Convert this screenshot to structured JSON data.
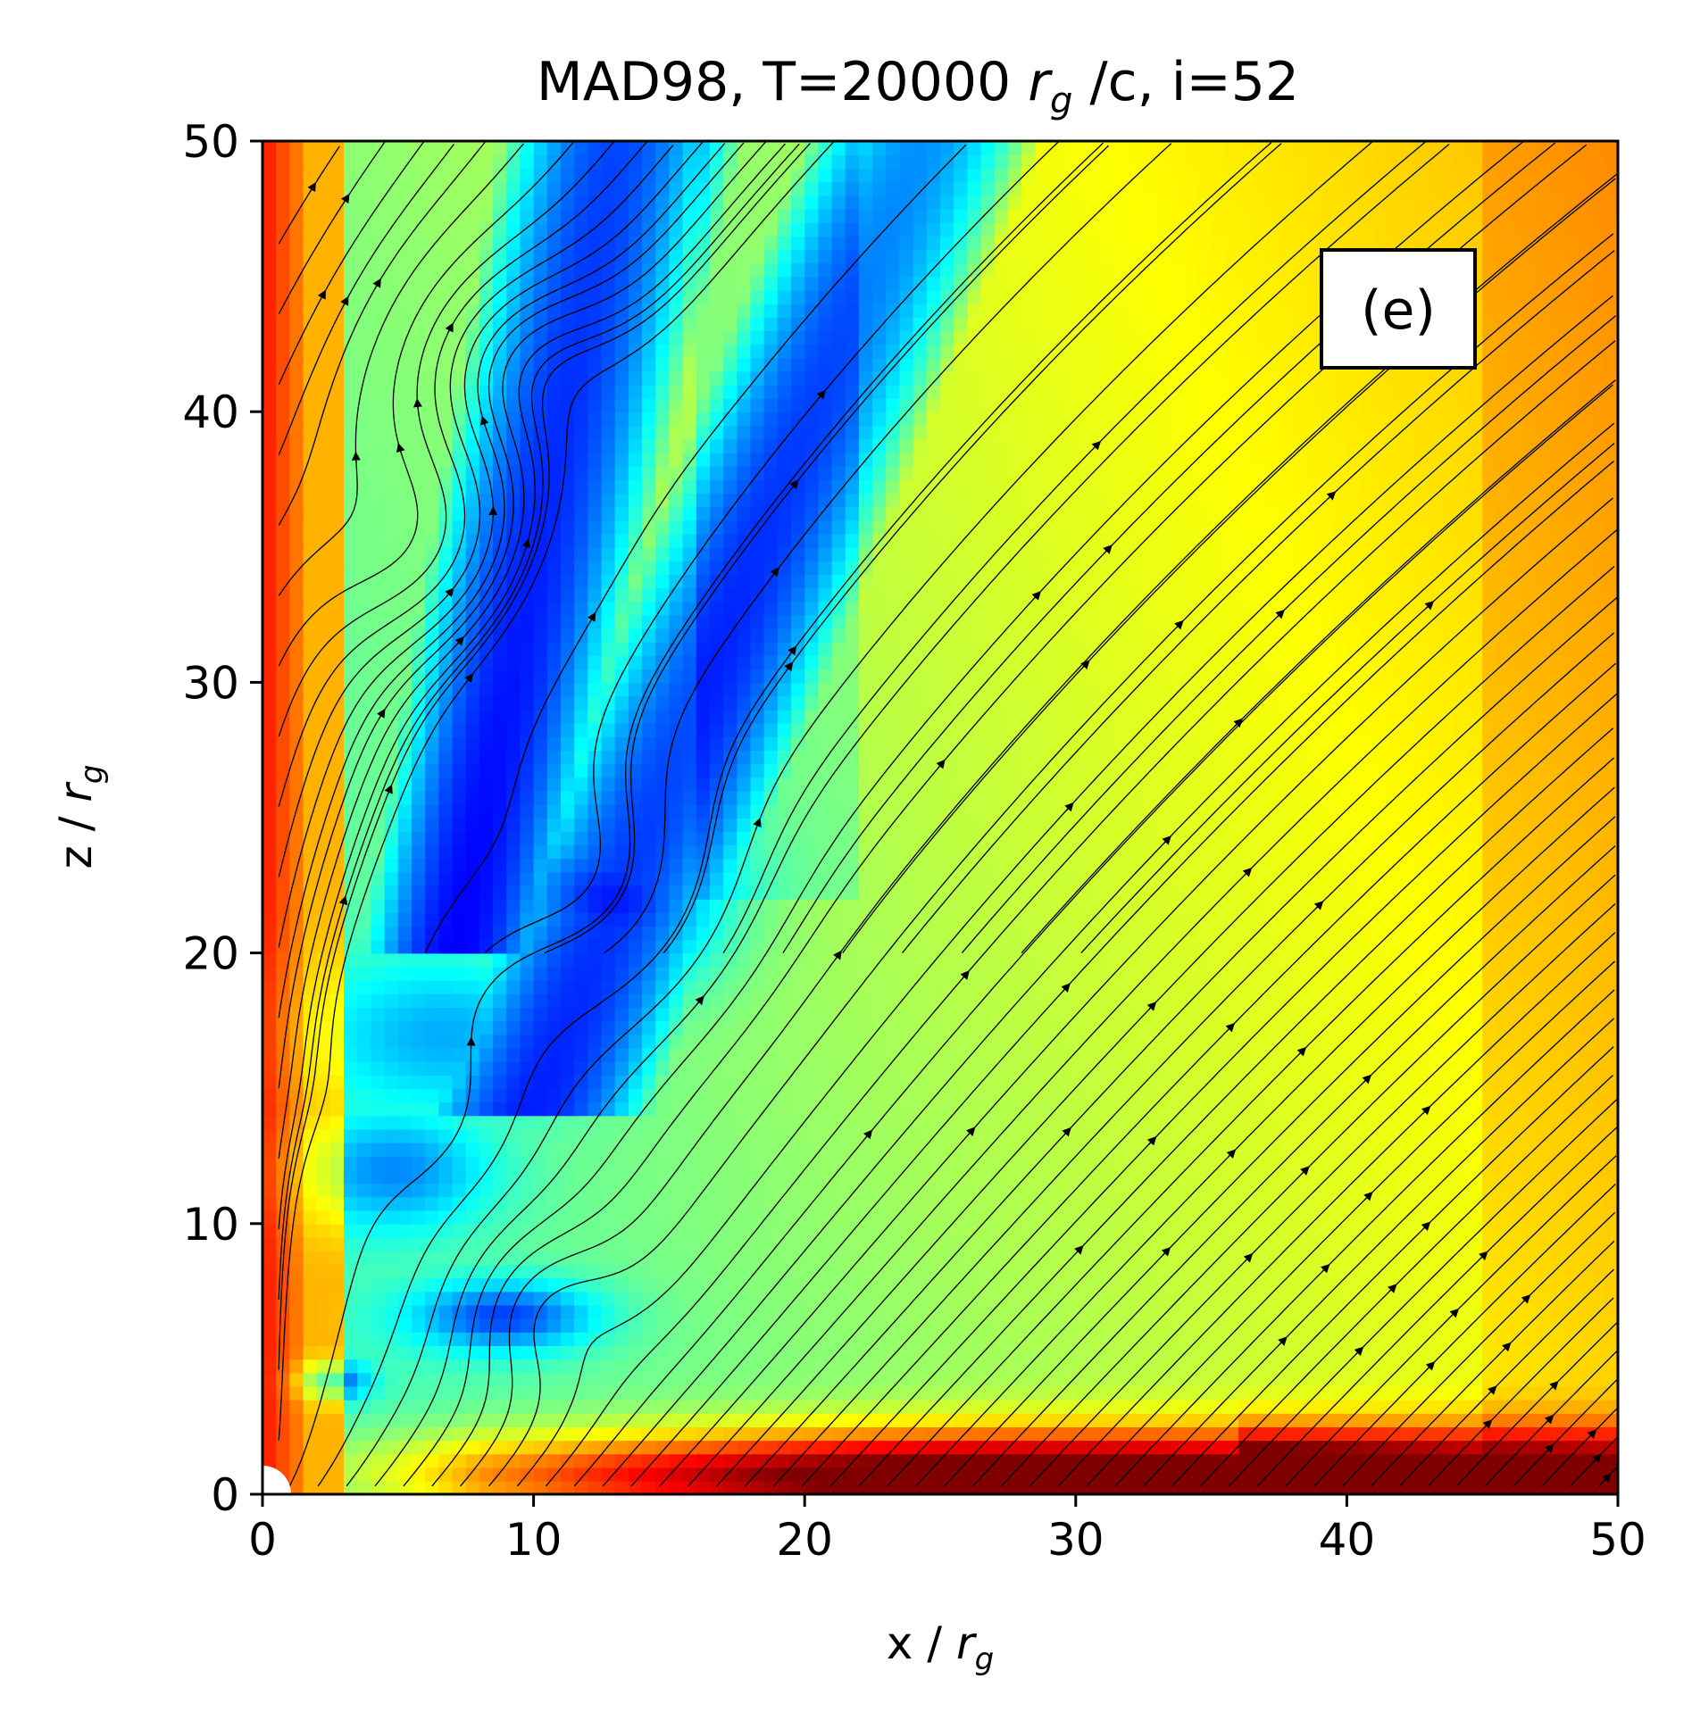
{
  "chart_data": {
    "type": "heatmap",
    "title": {
      "part1": "MAD98, T=20000 ",
      "symbol": "r",
      "subscript": "g",
      "part2": " /c, i=52"
    },
    "xlabel": {
      "prefix": "x / ",
      "symbol": "r",
      "subscript": "g"
    },
    "ylabel": {
      "prefix": "z / ",
      "symbol": "r",
      "subscript": "g"
    },
    "xlim": [
      0,
      50
    ],
    "ylim": [
      0,
      50
    ],
    "xticks": [
      0,
      10,
      20,
      30,
      40,
      50
    ],
    "yticks": [
      0,
      10,
      20,
      30,
      40,
      50
    ],
    "xtick_labels": [
      "0",
      "10",
      "20",
      "30",
      "40",
      "50"
    ],
    "ytick_labels": [
      "0",
      "10",
      "20",
      "30",
      "40",
      "50"
    ],
    "panel_label": "(e)",
    "colormap": "jet",
    "overlay": "streamlines",
    "grid": false
  }
}
